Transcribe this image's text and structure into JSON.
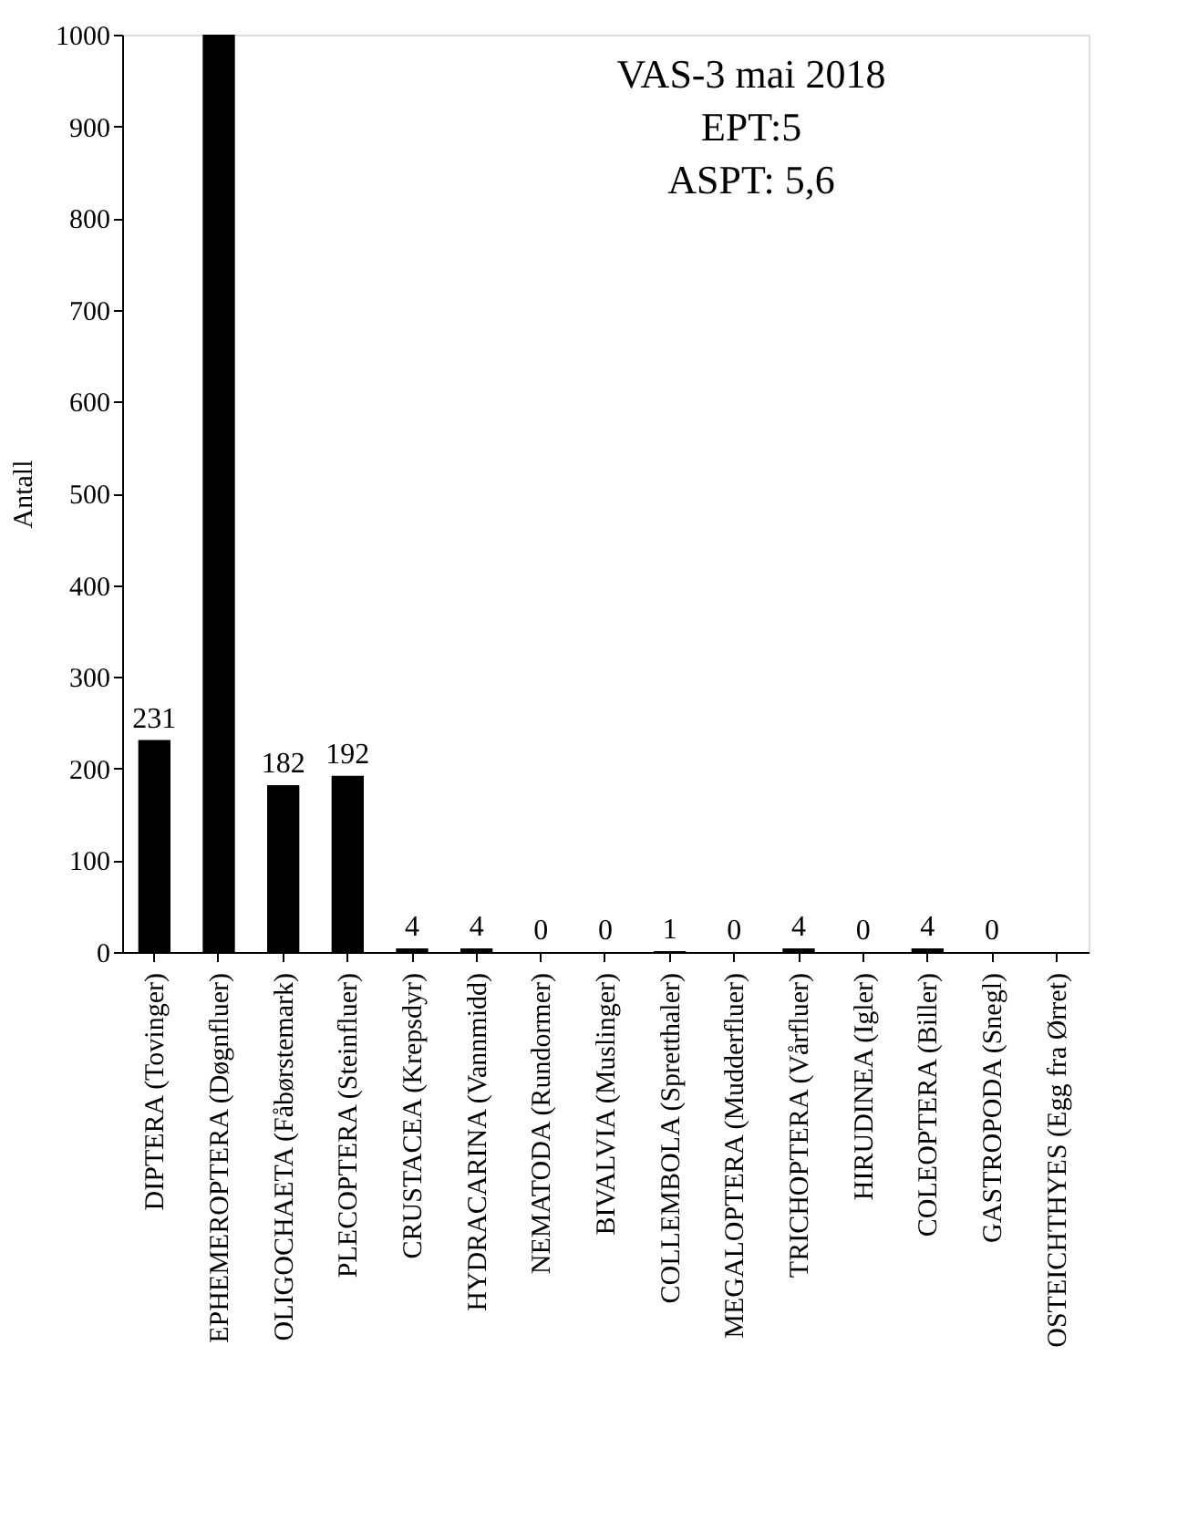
{
  "chart_data": {
    "type": "bar",
    "categories": [
      "DIPTERA (Tovinger)",
      "EPHEMEROPTERA (Døgnfluer)",
      "OLIGOCHAETA (Fåbørstemark)",
      "PLECOPTERA (Steinfluer)",
      "CRUSTACEA (Krepsdyr)",
      "HYDRACARINA (Vannmidd)",
      "NEMATODA (Rundormer)",
      "BIVALVIA (Muslinger)",
      "COLLEMBOLA (Spretthaler)",
      "MEGALOPTERA (Mudderfluer)",
      "TRICHOPTERA (Vårfluer)",
      "HIRUDINEA (Igler)",
      "COLEOPTERA (Biller)",
      "GASTROPODA (Snegl)",
      "OSTEICHTHYES (Egg fra Ørret)"
    ],
    "values": [
      231,
      1000,
      182,
      192,
      4,
      4,
      0,
      0,
      1,
      0,
      4,
      0,
      4,
      0,
      0
    ],
    "value_labels": [
      "231",
      null,
      "182",
      "192",
      "4",
      "4",
      "0",
      "0",
      "1",
      "0",
      "4",
      "0",
      "4",
      "0",
      null
    ],
    "color": "#000000",
    "ylabel": "Antall",
    "ylim": [
      0,
      1000
    ],
    "yticks": [
      0,
      100,
      200,
      300,
      400,
      500,
      600,
      700,
      800,
      900,
      1000
    ],
    "grid": false,
    "annotations": [
      "VAS-3 mai 2018",
      "EPT:5",
      "ASPT: 5,6"
    ]
  }
}
